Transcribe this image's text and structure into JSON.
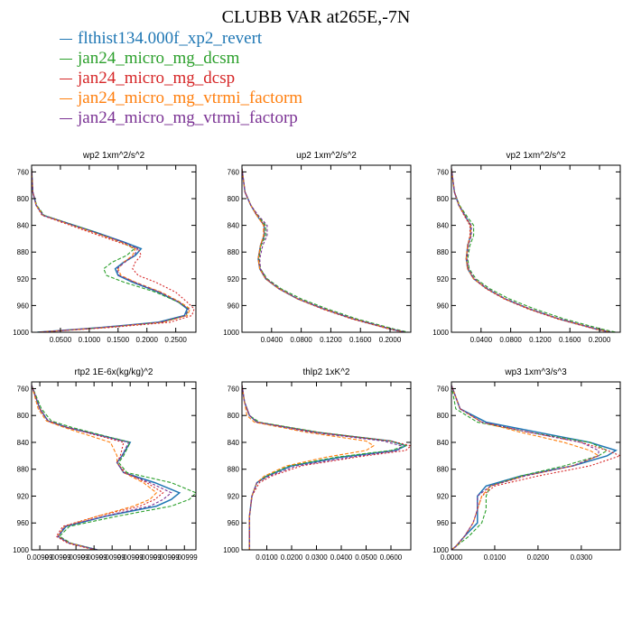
{
  "title": "CLUBB VAR at265E,-7N",
  "legend": [
    {
      "label": "flthist134.000f_xp2_revert",
      "color": "#1f77b4"
    },
    {
      "label": "jan24_micro_mg_dcsm",
      "color": "#2ca02c"
    },
    {
      "label": "jan24_micro_mg_dcsp",
      "color": "#d62728"
    },
    {
      "label": "jan24_micro_mg_vtrmi_factorm",
      "color": "#ff7f0e"
    },
    {
      "label": "jan24_micro_mg_vtrmi_factorp",
      "color": "#7b3294"
    }
  ],
  "chart_data": [
    {
      "type": "line",
      "title": "wp2   1xm^2/s^2",
      "ylim": [
        1000,
        750
      ],
      "xlim": [
        0,
        0.285
      ],
      "yticks": [
        760,
        800,
        840,
        880,
        920,
        960,
        1000
      ],
      "xticks": [
        "0.0500",
        "0.1000",
        "0.1500",
        "0.2000",
        "0.2500"
      ],
      "xtick_values": [
        0.05,
        0.1,
        0.15,
        0.2,
        0.25
      ],
      "p": [
        755,
        790,
        810,
        825,
        850,
        865,
        875,
        885,
        895,
        905,
        915,
        925,
        940,
        955,
        965,
        975,
        985,
        993,
        1000
      ],
      "series": [
        {
          "values": [
            0.0,
            0.002,
            0.008,
            0.02,
            0.11,
            0.16,
            0.19,
            0.18,
            0.16,
            0.145,
            0.15,
            0.175,
            0.22,
            0.255,
            0.27,
            0.265,
            0.22,
            0.12,
            0.01
          ]
        },
        {
          "values": [
            0.0,
            0.002,
            0.009,
            0.022,
            0.11,
            0.155,
            0.178,
            0.165,
            0.14,
            0.125,
            0.13,
            0.16,
            0.215,
            0.255,
            0.272,
            0.268,
            0.225,
            0.125,
            0.01
          ]
        },
        {
          "values": [
            0.0,
            0.002,
            0.008,
            0.018,
            0.1,
            0.15,
            0.185,
            0.19,
            0.18,
            0.175,
            0.185,
            0.215,
            0.25,
            0.27,
            0.282,
            0.278,
            0.24,
            0.135,
            0.012
          ]
        },
        {
          "values": [
            0.0,
            0.002,
            0.008,
            0.02,
            0.105,
            0.155,
            0.18,
            0.175,
            0.16,
            0.15,
            0.155,
            0.18,
            0.225,
            0.258,
            0.275,
            0.27,
            0.228,
            0.125,
            0.011
          ]
        },
        {
          "values": [
            0.0,
            0.002,
            0.008,
            0.02,
            0.108,
            0.158,
            0.184,
            0.178,
            0.162,
            0.148,
            0.152,
            0.178,
            0.222,
            0.256,
            0.272,
            0.267,
            0.224,
            0.122,
            0.01
          ]
        }
      ]
    },
    {
      "type": "line",
      "title": "up2   1xm^2/s^2",
      "ylim": [
        1000,
        750
      ],
      "xlim": [
        0,
        0.228
      ],
      "yticks": [
        760,
        800,
        840,
        880,
        920,
        960,
        1000
      ],
      "xticks": [
        "0.0400",
        "0.0800",
        "0.1200",
        "0.1600",
        "0.2000"
      ],
      "xtick_values": [
        0.04,
        0.08,
        0.12,
        0.16,
        0.2
      ],
      "p": [
        755,
        790,
        810,
        825,
        840,
        855,
        870,
        890,
        905,
        920,
        935,
        950,
        965,
        980,
        995,
        1000
      ],
      "series": [
        {
          "values": [
            0.0,
            0.004,
            0.012,
            0.02,
            0.03,
            0.03,
            0.025,
            0.022,
            0.024,
            0.032,
            0.05,
            0.075,
            0.11,
            0.15,
            0.2,
            0.22
          ]
        },
        {
          "values": [
            0.0,
            0.004,
            0.012,
            0.021,
            0.032,
            0.032,
            0.026,
            0.023,
            0.025,
            0.034,
            0.053,
            0.08,
            0.115,
            0.155,
            0.205,
            0.225
          ]
        },
        {
          "values": [
            0.0,
            0.004,
            0.012,
            0.02,
            0.03,
            0.03,
            0.025,
            0.022,
            0.024,
            0.032,
            0.05,
            0.075,
            0.108,
            0.148,
            0.198,
            0.218
          ]
        },
        {
          "values": [
            0.0,
            0.004,
            0.012,
            0.02,
            0.029,
            0.029,
            0.025,
            0.022,
            0.024,
            0.032,
            0.05,
            0.075,
            0.11,
            0.15,
            0.2,
            0.22
          ]
        },
        {
          "values": [
            0.0,
            0.004,
            0.012,
            0.022,
            0.034,
            0.034,
            0.028,
            0.024,
            0.025,
            0.033,
            0.051,
            0.076,
            0.111,
            0.151,
            0.201,
            0.221
          ]
        }
      ]
    },
    {
      "type": "line",
      "title": "vp2   1xm^2/s^2",
      "ylim": [
        1000,
        750
      ],
      "xlim": [
        0,
        0.228
      ],
      "yticks": [
        760,
        800,
        840,
        880,
        920,
        960,
        1000
      ],
      "xticks": [
        "0.0400",
        "0.0800",
        "0.1200",
        "0.1600",
        "0.2000"
      ],
      "xtick_values": [
        0.04,
        0.08,
        0.12,
        0.16,
        0.2
      ],
      "p": [
        755,
        790,
        810,
        825,
        840,
        855,
        870,
        890,
        905,
        920,
        935,
        950,
        965,
        980,
        995,
        1000
      ],
      "series": [
        {
          "values": [
            0.0,
            0.004,
            0.01,
            0.018,
            0.026,
            0.026,
            0.022,
            0.02,
            0.022,
            0.03,
            0.048,
            0.072,
            0.105,
            0.145,
            0.195,
            0.215
          ]
        },
        {
          "values": [
            0.0,
            0.004,
            0.011,
            0.02,
            0.03,
            0.03,
            0.025,
            0.022,
            0.024,
            0.033,
            0.052,
            0.078,
            0.112,
            0.152,
            0.202,
            0.222
          ]
        },
        {
          "values": [
            0.0,
            0.004,
            0.01,
            0.017,
            0.025,
            0.025,
            0.022,
            0.02,
            0.022,
            0.03,
            0.047,
            0.071,
            0.103,
            0.143,
            0.193,
            0.213
          ]
        },
        {
          "values": [
            0.0,
            0.004,
            0.01,
            0.018,
            0.026,
            0.026,
            0.022,
            0.02,
            0.022,
            0.03,
            0.048,
            0.072,
            0.105,
            0.145,
            0.195,
            0.215
          ]
        },
        {
          "values": [
            0.0,
            0.004,
            0.01,
            0.018,
            0.027,
            0.027,
            0.023,
            0.021,
            0.023,
            0.031,
            0.049,
            0.073,
            0.106,
            0.146,
            0.196,
            0.216
          ]
        }
      ]
    },
    {
      "type": "line",
      "title": "rtp2   1E-6x(kg/kg)^2",
      "ylim": [
        1000,
        750
      ],
      "xlim": [
        0,
        1
      ],
      "yticks": [
        760,
        800,
        840,
        880,
        920,
        960,
        1000
      ],
      "xticks": [
        "0.00999",
        "0.00999",
        "0.00999",
        "0.00999",
        "0.00999",
        "0.00999",
        "0.00999",
        "0.00999",
        "0.00999"
      ],
      "xtick_values": [
        0.05,
        0.16,
        0.27,
        0.38,
        0.49,
        0.6,
        0.71,
        0.82,
        0.93
      ],
      "p": [
        755,
        790,
        808,
        818,
        840,
        860,
        870,
        885,
        900,
        915,
        925,
        935,
        950,
        965,
        980,
        990,
        1000
      ],
      "series": [
        {
          "values": [
            0.0,
            0.05,
            0.1,
            0.22,
            0.6,
            0.55,
            0.52,
            0.56,
            0.75,
            0.9,
            0.85,
            0.76,
            0.45,
            0.21,
            0.16,
            0.23,
            0.4
          ]
        },
        {
          "values": [
            0.0,
            0.06,
            0.12,
            0.25,
            0.6,
            0.56,
            0.53,
            0.58,
            0.85,
            1.0,
            0.96,
            0.85,
            0.52,
            0.23,
            0.17,
            0.24,
            0.4
          ]
        },
        {
          "values": [
            0.0,
            0.05,
            0.1,
            0.22,
            0.56,
            0.54,
            0.52,
            0.57,
            0.7,
            0.8,
            0.75,
            0.66,
            0.4,
            0.19,
            0.15,
            0.22,
            0.38
          ]
        },
        {
          "values": [
            0.0,
            0.04,
            0.09,
            0.2,
            0.48,
            0.52,
            0.52,
            0.56,
            0.68,
            0.76,
            0.72,
            0.62,
            0.4,
            0.2,
            0.16,
            0.23,
            0.39
          ]
        },
        {
          "values": [
            0.0,
            0.05,
            0.1,
            0.22,
            0.59,
            0.55,
            0.52,
            0.56,
            0.72,
            0.85,
            0.8,
            0.72,
            0.44,
            0.2,
            0.16,
            0.23,
            0.4
          ]
        }
      ]
    },
    {
      "type": "line",
      "title": "thlp2   1xK^2",
      "ylim": [
        1000,
        750
      ],
      "xlim": [
        0,
        0.068
      ],
      "yticks": [
        760,
        800,
        840,
        880,
        920,
        960,
        1000
      ],
      "xticks": [
        "0.0100",
        "0.0200",
        "0.0300",
        "0.0400",
        "0.0500",
        "0.0600"
      ],
      "xtick_values": [
        0.01,
        0.02,
        0.03,
        0.04,
        0.05,
        0.06
      ],
      "p": [
        755,
        780,
        800,
        810,
        825,
        838,
        845,
        852,
        862,
        875,
        890,
        900,
        920,
        950,
        980,
        1000
      ],
      "series": [
        {
          "values": [
            0.0,
            0.001,
            0.003,
            0.006,
            0.03,
            0.06,
            0.066,
            0.062,
            0.04,
            0.02,
            0.01,
            0.006,
            0.004,
            0.003,
            0.003,
            0.003
          ]
        },
        {
          "values": [
            0.0,
            0.001,
            0.003,
            0.007,
            0.031,
            0.06,
            0.066,
            0.06,
            0.038,
            0.019,
            0.01,
            0.006,
            0.004,
            0.003,
            0.003,
            0.003
          ]
        },
        {
          "values": [
            0.0,
            0.001,
            0.003,
            0.006,
            0.03,
            0.06,
            0.068,
            0.066,
            0.046,
            0.024,
            0.012,
            0.007,
            0.004,
            0.003,
            0.003,
            0.003
          ]
        },
        {
          "values": [
            0.0,
            0.001,
            0.002,
            0.005,
            0.026,
            0.05,
            0.053,
            0.05,
            0.034,
            0.018,
            0.009,
            0.006,
            0.004,
            0.003,
            0.003,
            0.003
          ]
        },
        {
          "values": [
            0.0,
            0.001,
            0.003,
            0.006,
            0.028,
            0.057,
            0.064,
            0.063,
            0.044,
            0.022,
            0.011,
            0.006,
            0.004,
            0.003,
            0.003,
            0.003
          ]
        }
      ]
    },
    {
      "type": "line",
      "title": "wp3   1xm^3/s^3",
      "ylim": [
        1000,
        750
      ],
      "xlim": [
        0,
        0.039
      ],
      "yticks": [
        760,
        800,
        840,
        880,
        920,
        960,
        1000
      ],
      "xticks": [
        "0.0000",
        "0.0100",
        "0.0200",
        "0.0300"
      ],
      "xtick_values": [
        0,
        0.01,
        0.02,
        0.03
      ],
      "p": [
        755,
        790,
        810,
        825,
        840,
        852,
        860,
        875,
        890,
        905,
        920,
        940,
        960,
        980,
        995,
        1000
      ],
      "series": [
        {
          "values": [
            0.0,
            0.002,
            0.008,
            0.02,
            0.032,
            0.038,
            0.036,
            0.028,
            0.016,
            0.008,
            0.006,
            0.006,
            0.006,
            0.003,
            0.001,
            0.0
          ]
        },
        {
          "values": [
            0.0,
            0.001,
            0.006,
            0.018,
            0.032,
            0.036,
            0.034,
            0.026,
            0.016,
            0.009,
            0.008,
            0.008,
            0.007,
            0.004,
            0.001,
            0.0
          ]
        },
        {
          "values": [
            0.0,
            0.002,
            0.007,
            0.018,
            0.03,
            0.036,
            0.039,
            0.032,
            0.02,
            0.01,
            0.007,
            0.006,
            0.005,
            0.003,
            0.001,
            0.0
          ]
        },
        {
          "values": [
            0.0,
            0.002,
            0.007,
            0.016,
            0.026,
            0.032,
            0.034,
            0.028,
            0.017,
            0.009,
            0.007,
            0.006,
            0.005,
            0.003,
            0.001,
            0.0
          ]
        },
        {
          "values": [
            0.0,
            0.002,
            0.007,
            0.018,
            0.03,
            0.034,
            0.034,
            0.028,
            0.017,
            0.009,
            0.006,
            0.006,
            0.005,
            0.003,
            0.001,
            0.0
          ]
        }
      ]
    }
  ]
}
